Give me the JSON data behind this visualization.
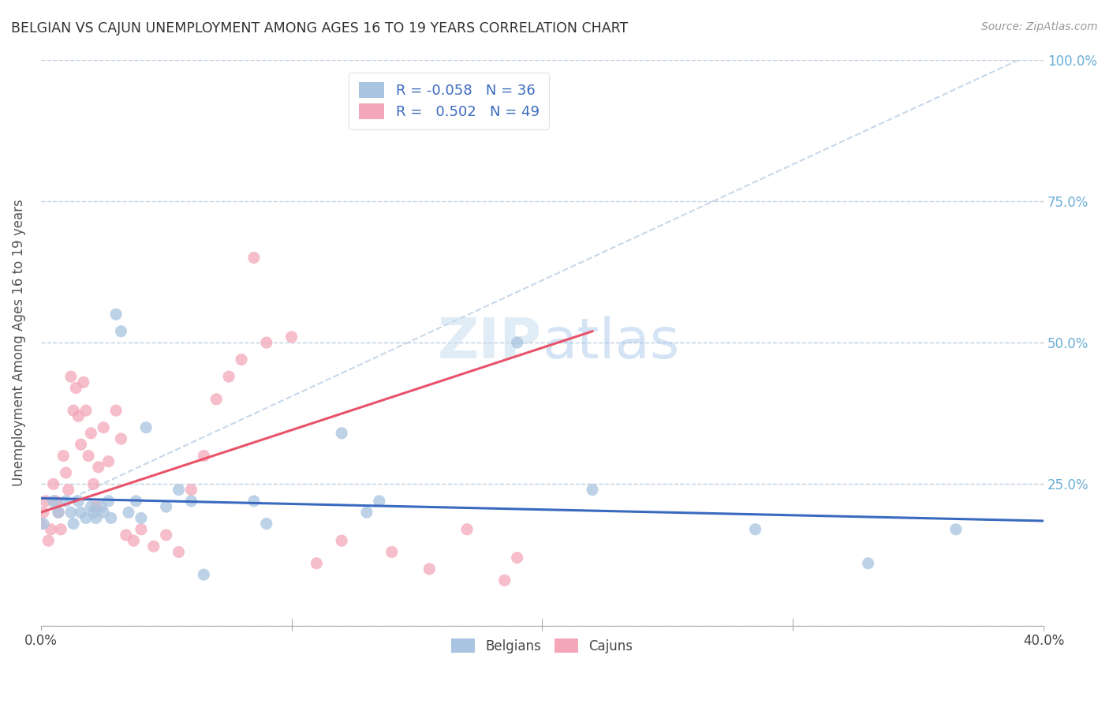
{
  "title": "BELGIAN VS CAJUN UNEMPLOYMENT AMONG AGES 16 TO 19 YEARS CORRELATION CHART",
  "source": "Source: ZipAtlas.com",
  "ylabel": "Unemployment Among Ages 16 to 19 years",
  "xlim": [
    0.0,
    0.4
  ],
  "ylim": [
    0.0,
    1.0
  ],
  "xticks": [
    0.0,
    0.1,
    0.2,
    0.3,
    0.4
  ],
  "xtick_labels": [
    "0.0%",
    "",
    "",
    "",
    "40.0%"
  ],
  "yticks": [
    0.0,
    0.25,
    0.5,
    0.75,
    1.0
  ],
  "ytick_labels_left": [
    "",
    "",
    "",
    "",
    ""
  ],
  "ytick_labels_right": [
    "",
    "25.0%",
    "50.0%",
    "75.0%",
    "100.0%"
  ],
  "belgian_color": "#a8c4e0",
  "cajun_color": "#f4a7b9",
  "belgian_line_color": "#3a6abf",
  "cajun_line_color": "#e8536a",
  "diagonal_color": "#c8d8e8",
  "belgian_R": "-0.058",
  "belgian_N": "36",
  "cajun_R": "0.502",
  "cajun_N": "49",
  "belgian_scatter_x": [
    0.001,
    0.005,
    0.007,
    0.01,
    0.012,
    0.013,
    0.015,
    0.016,
    0.018,
    0.02,
    0.021,
    0.022,
    0.024,
    0.025,
    0.027,
    0.028,
    0.03,
    0.032,
    0.035,
    0.038,
    0.04,
    0.042,
    0.05,
    0.055,
    0.06,
    0.065,
    0.085,
    0.09,
    0.12,
    0.13,
    0.135,
    0.19,
    0.22,
    0.285,
    0.33,
    0.365
  ],
  "belgian_scatter_y": [
    0.18,
    0.22,
    0.2,
    0.22,
    0.2,
    0.18,
    0.22,
    0.2,
    0.19,
    0.21,
    0.2,
    0.19,
    0.21,
    0.2,
    0.22,
    0.19,
    0.55,
    0.52,
    0.2,
    0.22,
    0.19,
    0.35,
    0.21,
    0.24,
    0.22,
    0.09,
    0.22,
    0.18,
    0.34,
    0.2,
    0.22,
    0.5,
    0.24,
    0.17,
    0.11,
    0.17
  ],
  "cajun_scatter_x": [
    0.0,
    0.001,
    0.002,
    0.003,
    0.004,
    0.005,
    0.006,
    0.007,
    0.008,
    0.009,
    0.01,
    0.011,
    0.012,
    0.013,
    0.014,
    0.015,
    0.016,
    0.017,
    0.018,
    0.019,
    0.02,
    0.021,
    0.022,
    0.023,
    0.025,
    0.027,
    0.03,
    0.032,
    0.034,
    0.037,
    0.04,
    0.045,
    0.05,
    0.055,
    0.06,
    0.065,
    0.07,
    0.075,
    0.08,
    0.085,
    0.09,
    0.1,
    0.11,
    0.12,
    0.14,
    0.155,
    0.17,
    0.185,
    0.19
  ],
  "cajun_scatter_y": [
    0.18,
    0.2,
    0.22,
    0.15,
    0.17,
    0.25,
    0.22,
    0.2,
    0.17,
    0.3,
    0.27,
    0.24,
    0.44,
    0.38,
    0.42,
    0.37,
    0.32,
    0.43,
    0.38,
    0.3,
    0.34,
    0.25,
    0.21,
    0.28,
    0.35,
    0.29,
    0.38,
    0.33,
    0.16,
    0.15,
    0.17,
    0.14,
    0.16,
    0.13,
    0.24,
    0.3,
    0.4,
    0.44,
    0.47,
    0.65,
    0.5,
    0.51,
    0.11,
    0.15,
    0.13,
    0.1,
    0.17,
    0.08,
    0.12
  ],
  "cajun_line_x_start": 0.0,
  "cajun_line_x_end": 0.22,
  "watermark_zip": "ZIP",
  "watermark_atlas": "atlas",
  "background_color": "#ffffff",
  "grid_color": "#c0d0e0",
  "scatter_size": 120,
  "scatter_alpha": 0.75
}
